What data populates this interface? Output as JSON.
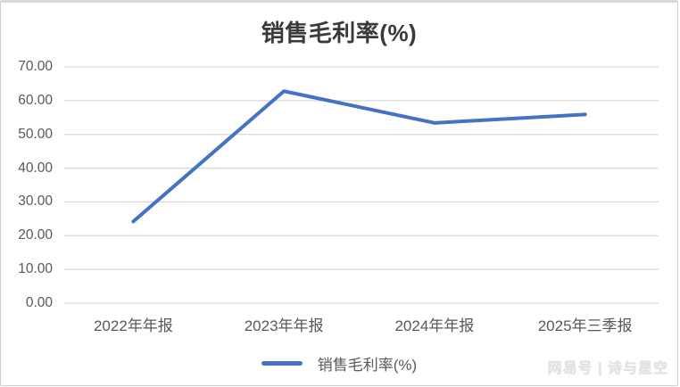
{
  "title": "销售毛利率(%)",
  "watermark": "网易号 | 诗与星空",
  "legend": {
    "label": "销售毛利率(%)",
    "marker_color": "#4472c4"
  },
  "colors": {
    "line": "#4472c4",
    "gridline": "#d9d9d9",
    "axis_label": "#595959",
    "title": "#3a3a3a"
  },
  "chart_data": {
    "type": "line",
    "title": "销售毛利率(%)",
    "categories": [
      "2022年年报",
      "2023年年报",
      "2024年年报",
      "2025年三季报"
    ],
    "series": [
      {
        "name": "销售毛利率(%)",
        "values": [
          24.2,
          62.8,
          53.4,
          55.9
        ]
      }
    ],
    "xlabel": "",
    "ylabel": "",
    "ylim": [
      0,
      70
    ],
    "ytick_step": 10,
    "ytick_labels": [
      "0.00",
      "10.00",
      "20.00",
      "30.00",
      "40.00",
      "50.00",
      "60.00",
      "70.00"
    ],
    "grid": true,
    "legend_position": "bottom"
  }
}
